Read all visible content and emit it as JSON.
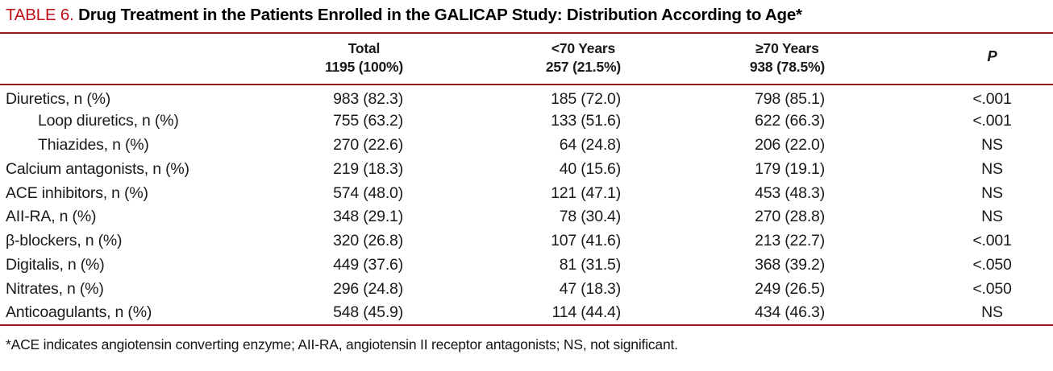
{
  "title": {
    "label": "TABLE 6.",
    "text": "Drug Treatment in the Patients Enrolled in the GALICAP Study: Distribution According to Age*"
  },
  "table": {
    "columns": [
      {
        "label": "",
        "sub": ""
      },
      {
        "label": "Total",
        "sub": "1195 (100%)"
      },
      {
        "label": "<70 Years",
        "sub": "257 (21.5%)"
      },
      {
        "label": "≥70 Years",
        "sub": "938 (78.5%)"
      },
      {
        "label": "P",
        "sub": ""
      }
    ],
    "rows": [
      {
        "drug": "Diuretics, n (%)",
        "indent": false,
        "total": "983 (82.3)",
        "under70": "185 (72.0)",
        "over70": "798 (85.1)",
        "p": "<.001"
      },
      {
        "drug": "Loop diuretics, n (%)",
        "indent": true,
        "total": "755 (63.2)",
        "under70": "133 (51.6)",
        "over70": "622 (66.3)",
        "p": "<.001"
      },
      {
        "drug": "Thiazides, n (%)",
        "indent": true,
        "total": "270 (22.6)",
        "under70": "64 (24.8)",
        "over70": "206 (22.0)",
        "p": "NS"
      },
      {
        "drug": "Calcium antagonists, n (%)",
        "indent": false,
        "total": "219 (18.3)",
        "under70": "40 (15.6)",
        "over70": "179 (19.1)",
        "p": "NS"
      },
      {
        "drug": "ACE inhibitors, n (%)",
        "indent": false,
        "total": "574 (48.0)",
        "under70": "121 (47.1)",
        "over70": "453 (48.3)",
        "p": "NS"
      },
      {
        "drug": "AII-RA, n (%)",
        "indent": false,
        "total": "348 (29.1)",
        "under70": "78 (30.4)",
        "over70": "270 (28.8)",
        "p": "NS"
      },
      {
        "drug": "β-blockers, n (%)",
        "indent": false,
        "total": "320 (26.8)",
        "under70": "107 (41.6)",
        "over70": "213 (22.7)",
        "p": "<.001"
      },
      {
        "drug": "Digitalis, n (%)",
        "indent": false,
        "total": "449 (37.6)",
        "under70": "81 (31.5)",
        "over70": "368 (39.2)",
        "p": "<.050"
      },
      {
        "drug": "Nitrates, n (%)",
        "indent": false,
        "total": "296 (24.8)",
        "under70": "47 (18.3)",
        "over70": "249 (26.5)",
        "p": "<.050"
      },
      {
        "drug": "Anticoagulants, n (%)",
        "indent": false,
        "total": "548 (45.9)",
        "under70": "114 (44.4)",
        "over70": "434 (46.3)",
        "p": "NS"
      }
    ]
  },
  "footnote": "*ACE indicates angiotensin converting enzyme; AII-RA, angiotensin II receptor antagonists; NS, not significant.",
  "colors": {
    "table_label": "#BE1118",
    "rules": "#981B1E"
  }
}
